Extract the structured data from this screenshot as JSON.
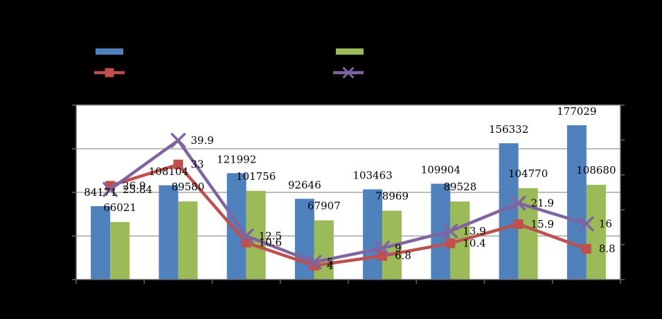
{
  "chart_data": {
    "type": "bar+line-combo",
    "title_visible": false,
    "background": "#000000",
    "plot_background": "#FFFFFF",
    "grid_color": "#A6A6A6",
    "axis_color": "#666666",
    "label_color": "#000000",
    "categories_count": 8,
    "category_labels_visible": false,
    "axes": {
      "left": {
        "min": 0,
        "max": 200000,
        "major": 50000,
        "gridlines": true,
        "labels_visible": false
      },
      "right": {
        "min": 0,
        "max": 50,
        "major": 10,
        "gridlines": false,
        "labels_visible": false
      }
    },
    "series": [
      {
        "id": "blue-bars",
        "type": "bar",
        "axis": "left",
        "color": "#4F81BD",
        "values": [
          84171,
          108104,
          121992,
          92646,
          103463,
          109904,
          156332,
          177029
        ],
        "data_labels": [
          "84171",
          "108104",
          "121992",
          "92646",
          "103463",
          "109904",
          "156332",
          "177029"
        ]
      },
      {
        "id": "green-bars",
        "type": "bar",
        "axis": "left",
        "color": "#9BBB59",
        "values": [
          66021,
          89580,
          101756,
          67907,
          78969,
          89528,
          104770,
          108680
        ],
        "data_labels": [
          "66021",
          "89580",
          "101756",
          "67907",
          "78969",
          "89528",
          "104770",
          "108680"
        ]
      },
      {
        "id": "red-line",
        "type": "line",
        "marker": "square",
        "axis": "right",
        "color": "#C0504D",
        "values": [
          26.9,
          33,
          10.6,
          4,
          6.8,
          10.4,
          15.9,
          8.8
        ],
        "data_labels": [
          "26.9",
          "33",
          "10.6",
          "4",
          "6.8",
          "10.4",
          "15.9",
          "8.8"
        ]
      },
      {
        "id": "purple-line",
        "type": "line",
        "marker": "x",
        "axis": "right",
        "color": "#8064A2",
        "values": [
          25.84,
          39.9,
          12.5,
          5,
          9,
          13.9,
          21.9,
          16
        ],
        "data_labels": [
          "25.84",
          "39.9",
          "12.5",
          "5",
          "9",
          "13.9",
          "21.9",
          "16"
        ]
      }
    ],
    "legend": {
      "position": "top",
      "labels_visible": false,
      "entries": [
        {
          "swatch": "bar",
          "color": "#4F81BD",
          "series": "blue-bars"
        },
        {
          "swatch": "line-square",
          "color": "#C0504D",
          "series": "red-line"
        },
        {
          "swatch": "bar",
          "color": "#9BBB59",
          "series": "green-bars"
        },
        {
          "swatch": "line-x",
          "color": "#8064A2",
          "series": "purple-line"
        }
      ]
    }
  }
}
